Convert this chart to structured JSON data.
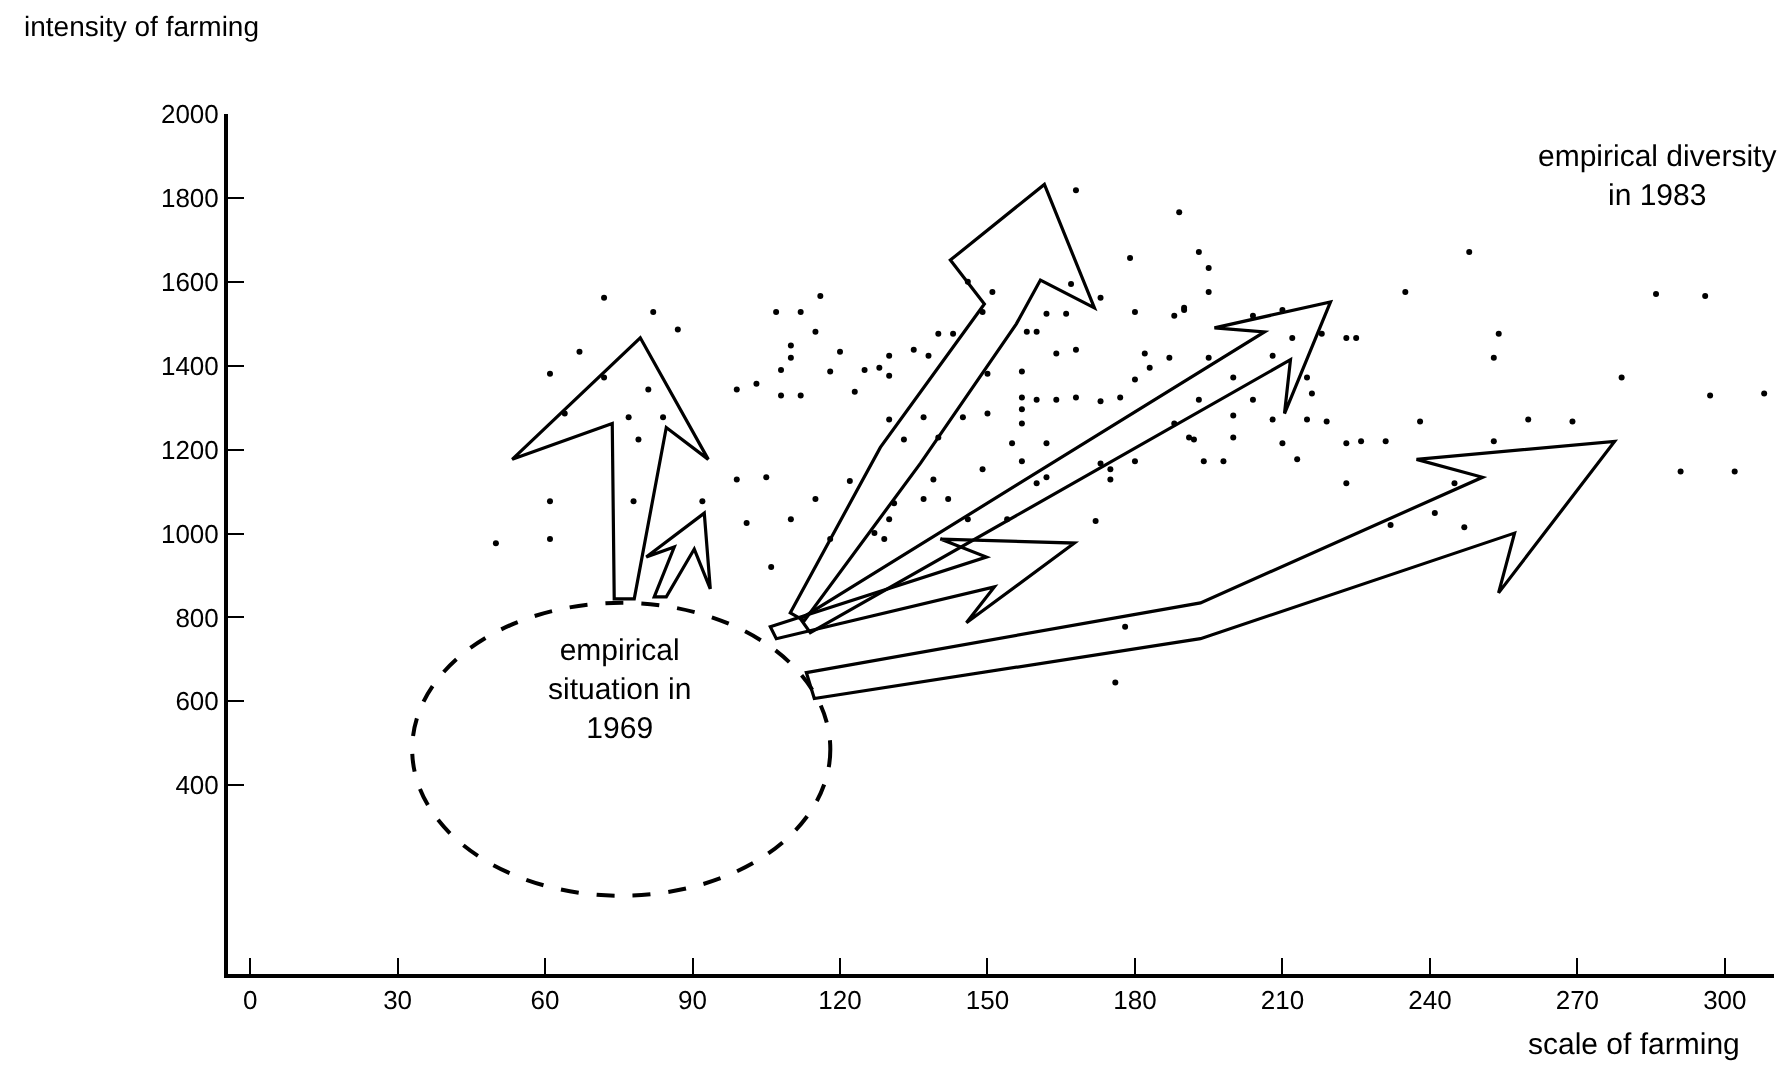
{
  "chart_data": {
    "type": "scatter",
    "xlabel": "scale of farming",
    "ylabel": "intensity of farming",
    "annotations": [
      "empirical diversity\nin 1983",
      "empirical\nsituation in\n1969"
    ],
    "xlim": [
      -4.5,
      310
    ],
    "xticks": [
      0,
      30,
      60,
      90,
      120,
      150,
      180,
      210,
      240,
      270,
      300
    ],
    "ylim": [
      -50,
      2000
    ],
    "yticks": [
      400,
      600,
      800,
      1000,
      1200,
      1400,
      1600,
      1800,
      2000
    ],
    "grid": false,
    "marker": "circle",
    "series": [
      {
        "color": "#000000",
        "x": [
          72,
          82,
          87,
          67,
          72,
          81,
          77,
          79,
          84,
          78,
          92,
          99,
          105,
          101,
          110,
          115,
          118,
          99,
          103,
          108,
          112,
          108,
          110,
          110,
          107,
          112,
          115,
          116,
          120,
          118,
          123,
          125,
          128,
          130,
          130,
          135,
          138,
          140,
          143,
          149,
          151,
          158,
          160,
          162,
          166,
          164,
          168,
          173,
          180,
          188,
          190,
          150,
          157,
          157,
          157,
          157,
          160,
          164,
          168,
          173,
          177,
          180,
          182,
          183,
          150,
          145,
          137,
          130,
          133,
          140,
          155,
          162,
          149,
          157,
          160,
          162,
          173,
          175,
          175,
          180,
          188,
          191,
          139,
          131,
          137,
          142,
          146,
          154,
          130,
          127,
          129,
          172,
          178,
          176,
          122,
          106,
          64,
          61,
          61,
          61,
          50,
          195,
          190,
          204,
          210,
          212,
          218,
          223,
          225,
          235,
          286,
          254,
          253,
          279,
          297,
          187,
          195,
          200,
          208,
          215,
          216,
          204,
          193,
          200,
          208,
          215,
          219,
          238,
          260,
          269,
          192,
          200,
          210,
          223,
          226,
          231,
          253,
          194,
          198,
          213,
          223,
          245,
          241,
          247,
          232,
          291,
          168,
          189,
          193,
          195,
          179,
          167,
          146,
          248,
          296,
          308,
          302
        ],
        "values": [
          1562,
          1528,
          1486,
          1433,
          1372,
          1343,
          1277,
          1224,
          1277,
          1077,
          1077,
          1129,
          1134,
          1025,
          1034,
          1082,
          987,
          1343,
          1357,
          1329,
          1329,
          1390,
          1448,
          1419,
          1528,
          1528,
          1481,
          1566,
          1433,
          1386,
          1338,
          1390,
          1395,
          1424,
          1376,
          1438,
          1424,
          1476,
          1476,
          1528,
          1576,
          1481,
          1481,
          1524,
          1524,
          1429,
          1438,
          1562,
          1528,
          1519,
          1533,
          1381,
          1386,
          1324,
          1296,
          1262,
          1319,
          1319,
          1324,
          1315,
          1324,
          1367,
          1429,
          1395,
          1286,
          1277,
          1277,
          1272,
          1224,
          1229,
          1215,
          1215,
          1153,
          1172,
          1120,
          1134,
          1167,
          1153,
          1129,
          1172,
          1262,
          1229,
          1129,
          1072,
          1082,
          1082,
          1034,
          1034,
          1034,
          1001,
          987,
          1030,
          778,
          645,
          1125,
          920,
          1286,
          1381,
          1077,
          987,
          977,
          1576,
          1538,
          1519,
          1533,
          1466,
          1476,
          1466,
          1466,
          1576,
          1571,
          1476,
          1419,
          1372,
          1329,
          1419,
          1419,
          1372,
          1424,
          1372,
          1334,
          1319,
          1319,
          1281,
          1272,
          1272,
          1267,
          1267,
          1272,
          1267,
          1224,
          1229,
          1215,
          1215,
          1220,
          1220,
          1220,
          1172,
          1172,
          1177,
          1120,
          1120,
          1049,
          1015,
          1020,
          1148,
          1818,
          1766,
          1671,
          1633,
          1657,
          1595,
          1600,
          1671,
          1566,
          1334,
          1148
        ]
      }
    ]
  }
}
